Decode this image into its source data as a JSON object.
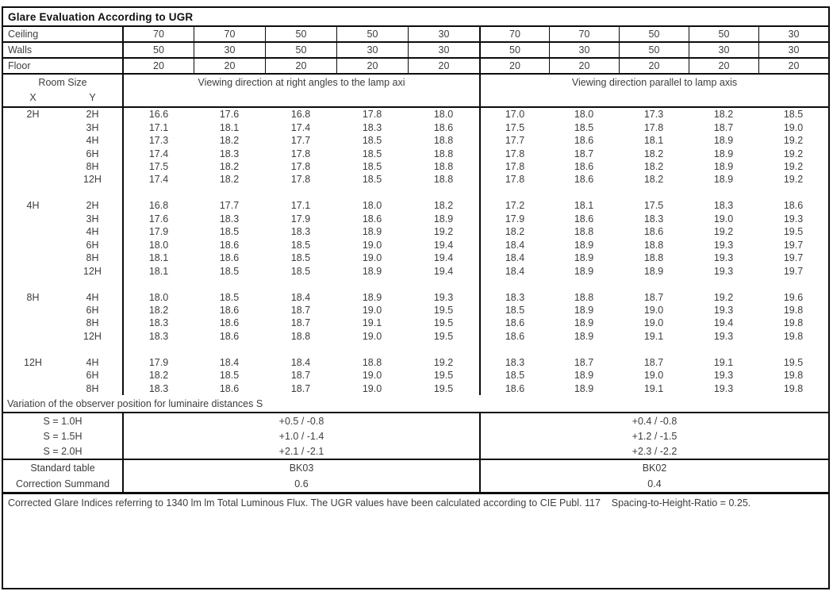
{
  "title": "Glare Evaluation According to UGR",
  "surface_rows": [
    {
      "label": "Ceiling",
      "values": [
        "70",
        "70",
        "50",
        "50",
        "30",
        "70",
        "70",
        "50",
        "50",
        "30"
      ]
    },
    {
      "label": "Walls",
      "values": [
        "50",
        "30",
        "50",
        "30",
        "30",
        "50",
        "30",
        "50",
        "30",
        "30"
      ]
    },
    {
      "label": "Floor",
      "values": [
        "20",
        "20",
        "20",
        "20",
        "20",
        "20",
        "20",
        "20",
        "20",
        "20"
      ]
    }
  ],
  "room_size_header": {
    "title": "Room Size",
    "x": "X",
    "y": "Y"
  },
  "direction_headers": {
    "left": "Viewing direction at right angles to the lamp axi",
    "right": "Viewing direction parallel to lamp axis"
  },
  "ugr_blocks": [
    {
      "x": "2H",
      "rows": [
        {
          "y": "2H",
          "values": [
            "16.6",
            "17.6",
            "16.8",
            "17.8",
            "18.0",
            "17.0",
            "18.0",
            "17.3",
            "18.2",
            "18.5"
          ]
        },
        {
          "y": "3H",
          "values": [
            "17.1",
            "18.1",
            "17.4",
            "18.3",
            "18.6",
            "17.5",
            "18.5",
            "17.8",
            "18.7",
            "19.0"
          ]
        },
        {
          "y": "4H",
          "values": [
            "17.3",
            "18.2",
            "17.7",
            "18.5",
            "18.8",
            "17.7",
            "18.6",
            "18.1",
            "18.9",
            "19.2"
          ]
        },
        {
          "y": "6H",
          "values": [
            "17.4",
            "18.3",
            "17.8",
            "18.5",
            "18.8",
            "17.8",
            "18.7",
            "18.2",
            "18.9",
            "19.2"
          ]
        },
        {
          "y": "8H",
          "values": [
            "17.5",
            "18.2",
            "17.8",
            "18.5",
            "18.8",
            "17.8",
            "18.6",
            "18.2",
            "18.9",
            "19.2"
          ]
        },
        {
          "y": "12H",
          "values": [
            "17.4",
            "18.2",
            "17.8",
            "18.5",
            "18.8",
            "17.8",
            "18.6",
            "18.2",
            "18.9",
            "19.2"
          ]
        }
      ]
    },
    {
      "x": "4H",
      "rows": [
        {
          "y": "2H",
          "values": [
            "16.8",
            "17.7",
            "17.1",
            "18.0",
            "18.2",
            "17.2",
            "18.1",
            "17.5",
            "18.3",
            "18.6"
          ]
        },
        {
          "y": "3H",
          "values": [
            "17.6",
            "18.3",
            "17.9",
            "18.6",
            "18.9",
            "17.9",
            "18.6",
            "18.3",
            "19.0",
            "19.3"
          ]
        },
        {
          "y": "4H",
          "values": [
            "17.9",
            "18.5",
            "18.3",
            "18.9",
            "19.2",
            "18.2",
            "18.8",
            "18.6",
            "19.2",
            "19.5"
          ]
        },
        {
          "y": "6H",
          "values": [
            "18.0",
            "18.6",
            "18.5",
            "19.0",
            "19.4",
            "18.4",
            "18.9",
            "18.8",
            "19.3",
            "19.7"
          ]
        },
        {
          "y": "8H",
          "values": [
            "18.1",
            "18.6",
            "18.5",
            "19.0",
            "19.4",
            "18.4",
            "18.9",
            "18.8",
            "19.3",
            "19.7"
          ]
        },
        {
          "y": "12H",
          "values": [
            "18.1",
            "18.5",
            "18.5",
            "18.9",
            "19.4",
            "18.4",
            "18.9",
            "18.9",
            "19.3",
            "19.7"
          ]
        }
      ]
    },
    {
      "x": "8H",
      "rows": [
        {
          "y": "4H",
          "values": [
            "18.0",
            "18.5",
            "18.4",
            "18.9",
            "19.3",
            "18.3",
            "18.8",
            "18.7",
            "19.2",
            "19.6"
          ]
        },
        {
          "y": "6H",
          "values": [
            "18.2",
            "18.6",
            "18.7",
            "19.0",
            "19.5",
            "18.5",
            "18.9",
            "19.0",
            "19.3",
            "19.8"
          ]
        },
        {
          "y": "8H",
          "values": [
            "18.3",
            "18.6",
            "18.7",
            "19.1",
            "19.5",
            "18.6",
            "18.9",
            "19.0",
            "19.4",
            "19.8"
          ]
        },
        {
          "y": "12H",
          "values": [
            "18.3",
            "18.6",
            "18.8",
            "19.0",
            "19.5",
            "18.6",
            "18.9",
            "19.1",
            "19.3",
            "19.8"
          ]
        }
      ]
    },
    {
      "x": "12H",
      "rows": [
        {
          "y": "4H",
          "values": [
            "17.9",
            "18.4",
            "18.4",
            "18.8",
            "19.2",
            "18.3",
            "18.7",
            "18.7",
            "19.1",
            "19.5"
          ]
        },
        {
          "y": "6H",
          "values": [
            "18.2",
            "18.5",
            "18.7",
            "19.0",
            "19.5",
            "18.5",
            "18.9",
            "19.0",
            "19.3",
            "19.8"
          ]
        },
        {
          "y": "8H",
          "values": [
            "18.3",
            "18.6",
            "18.7",
            "19.0",
            "19.5",
            "18.6",
            "18.9",
            "19.1",
            "19.3",
            "19.8"
          ]
        }
      ]
    }
  ],
  "variation_section": {
    "header": "Variation of the observer position for luminaire distances S",
    "rows": [
      {
        "label": "S = 1.0H",
        "left": "+0.5 / -0.8",
        "right": "+0.4 / -0.8"
      },
      {
        "label": "S = 1.5H",
        "left": "+1.0 / -1.4",
        "right": "+1.2 / -1.5"
      },
      {
        "label": "S = 2.0H",
        "left": "+2.1 / -2.1",
        "right": "+2.3 / -2.2"
      }
    ]
  },
  "standard_section": {
    "rows": [
      {
        "label": "Standard table",
        "left": "BK03",
        "right": "BK02"
      },
      {
        "label": "Correction Summand",
        "left": "0.6",
        "right": "0.4"
      }
    ]
  },
  "footer": "Corrected Glare Indices referring to 1340 lm lm Total Luminous Flux. The UGR values have been calculated according to CIE Publ. 117    Spacing-to-Height-Ratio = 0.25.",
  "colors": {
    "border": "#0c0c0c",
    "text": "#3d3d3d",
    "background": "#ffffff"
  }
}
